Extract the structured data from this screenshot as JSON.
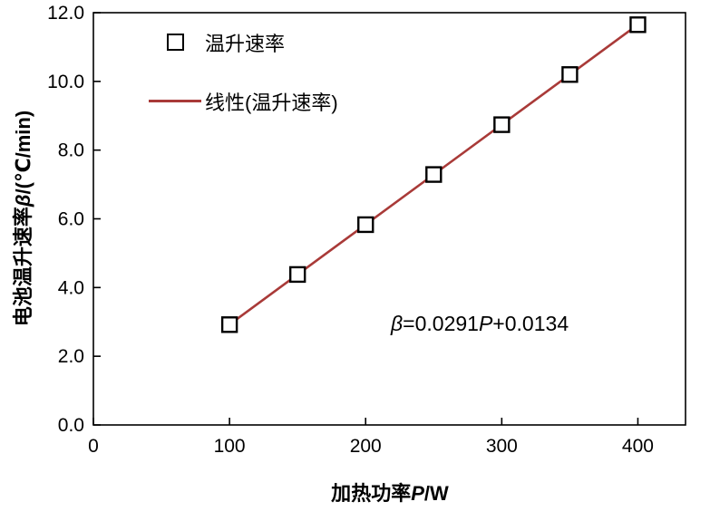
{
  "chart_data": {
    "type": "scatter",
    "title": "",
    "xlabel": "加热功率P/W",
    "ylabel": "电池温升速率β/(℃/min)",
    "x": [
      100,
      150,
      200,
      250,
      300,
      350,
      400
    ],
    "y": [
      2.92,
      4.38,
      5.83,
      7.29,
      8.74,
      10.2,
      11.65
    ],
    "series_name": "温升速率",
    "fit": {
      "slope": 0.0291,
      "intercept": 0.0134,
      "x_range": [
        100,
        403
      ],
      "equation": "β=0.0291P+0.0134"
    },
    "xlim": [
      0,
      435
    ],
    "ylim": [
      0,
      12
    ],
    "x_ticks": [
      0,
      100,
      200,
      300,
      400
    ],
    "y_ticks": [
      0.0,
      2.0,
      4.0,
      6.0,
      8.0,
      10.0,
      12.0
    ],
    "grid": false,
    "legend_position": "upper-left-inside",
    "legend": [
      {
        "label": "温升速率",
        "marker": "open-square"
      },
      {
        "label": "线性(温升速率)",
        "marker": "line"
      }
    ],
    "colors": {
      "fit_line": "#a93a38",
      "marker_stroke": "#000000",
      "marker_fill": "#ffffff",
      "axis": "#000000",
      "background": "#ffffff"
    }
  }
}
